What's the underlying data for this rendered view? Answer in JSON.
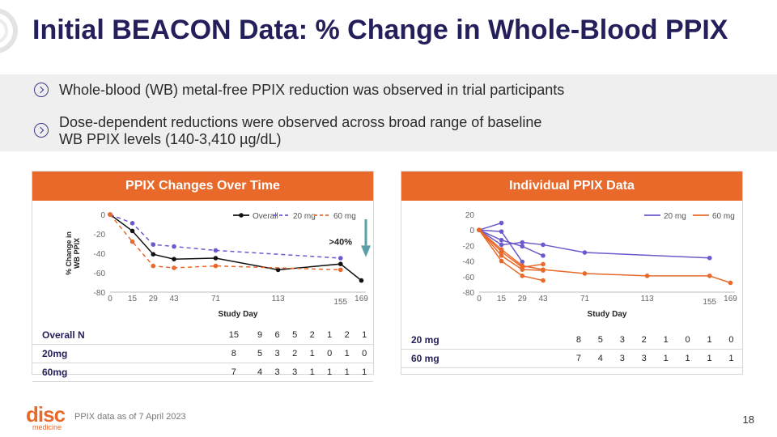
{
  "slide": {
    "title": "Initial BEACON Data: % Change in Whole-Blood PPIX",
    "bullets": [
      "Whole-blood (WB) metal-free PPIX reduction was observed in trial participants",
      "Dose-dependent reductions were observed across broad range of baseline",
      "WB PPIX levels (140-3,410 µg/dL)"
    ],
    "footnote": "PPIX data as of 7 April 2023",
    "page_number": "18",
    "logo": {
      "word": "disc",
      "sub": "medicine"
    }
  },
  "colors": {
    "orange": "#e8692a",
    "navy": "#231f5a",
    "purple": "#6a5acd",
    "black": "#111111",
    "bullet_bg": "#efefef"
  },
  "icons": [
    "chevron-circle-icon",
    "arrow-down-icon"
  ],
  "chart_data": [
    {
      "type": "line",
      "title": "PPIX Changes Over Time",
      "xlabel": "Study Day",
      "ylabel": "% Change in WB PPIX",
      "xticks": [
        0,
        15,
        29,
        43,
        71,
        113,
        155,
        169
      ],
      "yticks": [
        0,
        -20,
        -40,
        -60,
        -80
      ],
      "xlim": [
        0,
        172
      ],
      "ylim": [
        -80,
        0
      ],
      "grid": false,
      "legend_position": "top-right",
      "annotation": ">40%",
      "series": [
        {
          "name": "Overall",
          "style": "solid",
          "color": "#111111",
          "x": [
            0,
            15,
            29,
            43,
            71,
            113,
            155,
            169
          ],
          "y": [
            0,
            -17,
            -41,
            -46,
            -45,
            -57,
            -51,
            -68
          ]
        },
        {
          "name": "20 mg",
          "style": "dashed",
          "color": "#6a5acd",
          "x": [
            0,
            15,
            29,
            43,
            71,
            155
          ],
          "y": [
            0,
            -9,
            -31,
            -33,
            -37,
            -45
          ]
        },
        {
          "name": "60 mg",
          "style": "dashed",
          "color": "#e8692a",
          "x": [
            0,
            15,
            29,
            43,
            71,
            155
          ],
          "y": [
            0,
            -28,
            -53,
            -55,
            -53,
            -57
          ]
        }
      ],
      "table": [
        {
          "label": "Overall N",
          "values": [
            "15",
            "9",
            "6",
            "5",
            "2",
            "1",
            "2",
            "1"
          ]
        },
        {
          "label": "20mg",
          "values": [
            "8",
            "5",
            "3",
            "2",
            "1",
            "0",
            "1",
            "0"
          ]
        },
        {
          "label": "60mg",
          "values": [
            "7",
            "4",
            "3",
            "3",
            "1",
            "1",
            "1",
            "1"
          ]
        }
      ]
    },
    {
      "type": "line",
      "title": "Individual PPIX Data",
      "xlabel": "Study Day",
      "xticks": [
        0,
        15,
        29,
        43,
        71,
        113,
        155,
        169
      ],
      "yticks": [
        20,
        0,
        -20,
        -40,
        -60,
        -80
      ],
      "xlim": [
        0,
        172
      ],
      "ylim": [
        -80,
        20
      ],
      "grid": false,
      "legend_position": "top-right",
      "legend": [
        {
          "name": "20 mg",
          "color": "#6a5acd"
        },
        {
          "name": "60 mg",
          "color": "#e8692a"
        }
      ],
      "series": [
        {
          "group": "20 mg",
          "color": "#6a5acd",
          "x": [
            0,
            15
          ],
          "y": [
            0,
            9
          ]
        },
        {
          "group": "20 mg",
          "color": "#6a5acd",
          "x": [
            0,
            15,
            29
          ],
          "y": [
            0,
            -2,
            -41
          ]
        },
        {
          "group": "20 mg",
          "color": "#6a5acd",
          "x": [
            0,
            15,
            29,
            43
          ],
          "y": [
            0,
            -13,
            -21,
            -33
          ]
        },
        {
          "group": "20 mg",
          "color": "#6a5acd",
          "x": [
            0,
            15,
            29,
            43,
            71,
            155
          ],
          "y": [
            0,
            -19,
            -16,
            -19,
            -29,
            -36
          ]
        },
        {
          "group": "60 mg",
          "color": "#e8692a",
          "x": [
            0,
            15,
            29,
            43
          ],
          "y": [
            0,
            -28,
            -48,
            -44
          ]
        },
        {
          "group": "60 mg",
          "color": "#e8692a",
          "x": [
            0,
            15,
            29,
            43
          ],
          "y": [
            0,
            -33,
            -51,
            -52
          ]
        },
        {
          "group": "60 mg",
          "color": "#e8692a",
          "x": [
            0,
            15,
            29,
            43
          ],
          "y": [
            0,
            -40,
            -59,
            -65
          ]
        },
        {
          "group": "60 mg",
          "color": "#e8692a",
          "x": [
            0,
            15,
            29,
            43,
            71,
            113,
            155,
            169
          ],
          "y": [
            0,
            -25,
            -46,
            -51,
            -56,
            -59,
            -59,
            -68
          ]
        }
      ],
      "table": [
        {
          "label": "20 mg",
          "values": [
            "8",
            "5",
            "3",
            "2",
            "1",
            "0",
            "1",
            "0"
          ]
        },
        {
          "label": "60 mg",
          "values": [
            "7",
            "4",
            "3",
            "3",
            "1",
            "1",
            "1",
            "1"
          ]
        }
      ]
    }
  ]
}
